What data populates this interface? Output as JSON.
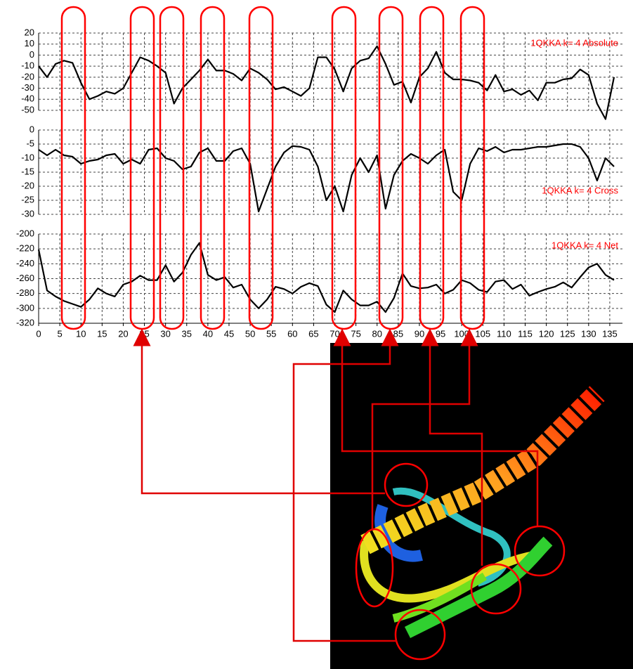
{
  "chart_data": [
    {
      "type": "line",
      "title": "1QKKA k= 4 Absolute",
      "color": "#000000",
      "title_color": "#ff0000",
      "grid": true,
      "xlim": [
        0,
        138
      ],
      "ylim": [
        -62,
        24
      ],
      "yticks": [
        20,
        10,
        0,
        -10,
        -20,
        -30,
        -40,
        -50
      ],
      "x": [
        0,
        2,
        4,
        6,
        8,
        10,
        12,
        14,
        16,
        18,
        20,
        22,
        24,
        26,
        28,
        30,
        32,
        34,
        36,
        38,
        40,
        42,
        44,
        46,
        48,
        50,
        52,
        54,
        56,
        58,
        60,
        62,
        64,
        66,
        68,
        70,
        72,
        74,
        76,
        78,
        80,
        82,
        84,
        86,
        88,
        90,
        92,
        94,
        96,
        98,
        100,
        102,
        104,
        106,
        108,
        110,
        112,
        114,
        116,
        118,
        120,
        122,
        124,
        126,
        128,
        130,
        132,
        134,
        136
      ],
      "values": [
        -10,
        -20,
        -8,
        -5,
        -7,
        -25,
        -40,
        -37,
        -33,
        -35,
        -30,
        -16,
        -2,
        -5,
        -10,
        -16,
        -44,
        -30,
        -22,
        -14,
        -4,
        -14,
        -14,
        -17,
        -23,
        -12,
        -16,
        -22,
        -31,
        -29,
        -33,
        -37,
        -30,
        -2,
        -2,
        -13,
        -33,
        -12,
        -5,
        -3,
        8,
        -8,
        -27,
        -24,
        -43,
        -20,
        -12,
        3,
        -16,
        -22,
        -22,
        -23,
        -25,
        -32,
        -18,
        -33,
        -31,
        -36,
        -32,
        -41,
        -25,
        -25,
        -22,
        -21,
        -13,
        -18,
        -44,
        -58,
        -20
      ]
    },
    {
      "type": "line",
      "title": "1QKKA k= 4 Cross",
      "color": "#000000",
      "title_color": "#ff0000",
      "grid": true,
      "xlim": [
        0,
        138
      ],
      "ylim": [
        -35,
        1
      ],
      "yticks": [
        0,
        -5,
        -10,
        -15,
        -20,
        -25,
        -30
      ],
      "x": [
        0,
        2,
        4,
        6,
        8,
        10,
        12,
        14,
        16,
        18,
        20,
        22,
        24,
        26,
        28,
        30,
        32,
        34,
        36,
        38,
        40,
        42,
        44,
        46,
        48,
        50,
        52,
        54,
        56,
        58,
        60,
        62,
        64,
        66,
        68,
        70,
        72,
        74,
        76,
        78,
        80,
        82,
        84,
        86,
        88,
        90,
        92,
        94,
        96,
        98,
        100,
        102,
        104,
        106,
        108,
        110,
        112,
        114,
        116,
        118,
        120,
        122,
        124,
        126,
        128,
        130,
        132,
        134,
        136
      ],
      "values": [
        -7,
        -9,
        -7,
        -9,
        -9.5,
        -12,
        -11,
        -10.5,
        -9,
        -8.5,
        -12,
        -10.5,
        -12,
        -7,
        -6.5,
        -10,
        -11,
        -14,
        -13,
        -8,
        -6.5,
        -11,
        -11,
        -7.5,
        -6.5,
        -12,
        -29,
        -21,
        -13,
        -8,
        -5.7,
        -6,
        -7,
        -13,
        -25,
        -20,
        -29,
        -16,
        -10,
        -15,
        -9,
        -28,
        -16,
        -11,
        -8.5,
        -10,
        -12,
        -9,
        -7,
        -22,
        -25,
        -12,
        -6.5,
        -7.5,
        -6,
        -8,
        -7,
        -7,
        -6.5,
        -6,
        -6,
        -5.5,
        -5,
        -5,
        -6,
        -10,
        -18,
        -10,
        -13
      ]
    },
    {
      "type": "line",
      "title": "1QKKA k= 4 Net",
      "color": "#000000",
      "title_color": "#ff0000",
      "grid": true,
      "xlim": [
        0,
        138
      ],
      "ylim": [
        -320,
        -200
      ],
      "yticks": [
        -200,
        -220,
        -240,
        -260,
        -280,
        -300,
        -320
      ],
      "xticks": [
        0,
        5,
        10,
        15,
        20,
        25,
        30,
        35,
        40,
        45,
        50,
        55,
        60,
        65,
        70,
        75,
        80,
        85,
        90,
        95,
        100,
        105,
        110,
        115,
        120,
        125,
        130,
        135
      ],
      "x": [
        0,
        2,
        4,
        6,
        8,
        10,
        12,
        14,
        16,
        18,
        20,
        22,
        24,
        26,
        28,
        30,
        32,
        34,
        36,
        38,
        40,
        42,
        44,
        46,
        48,
        50,
        52,
        54,
        56,
        58,
        60,
        62,
        64,
        66,
        68,
        70,
        72,
        74,
        76,
        78,
        80,
        82,
        84,
        86,
        88,
        90,
        92,
        94,
        96,
        98,
        100,
        102,
        104,
        106,
        108,
        110,
        112,
        114,
        116,
        118,
        120,
        122,
        124,
        126,
        128,
        130,
        132,
        134,
        136
      ],
      "values": [
        -221,
        -276,
        -284,
        -290,
        -294,
        -298,
        -288,
        -273,
        -280,
        -284,
        -268,
        -264,
        -256,
        -262,
        -262,
        -242,
        -264,
        -252,
        -228,
        -212,
        -255,
        -262,
        -258,
        -272,
        -268,
        -288,
        -300,
        -288,
        -271,
        -274,
        -280,
        -271,
        -266,
        -270,
        -295,
        -305,
        -276,
        -288,
        -296,
        -296,
        -291,
        -305,
        -286,
        -253,
        -270,
        -273,
        -272,
        -268,
        -280,
        -275,
        -262,
        -266,
        -275,
        -278,
        -264,
        -262,
        -274,
        -268,
        -283,
        -278,
        -274,
        -271,
        -265,
        -272,
        -258,
        -245,
        -240,
        -255,
        -262
      ]
    }
  ]
}
